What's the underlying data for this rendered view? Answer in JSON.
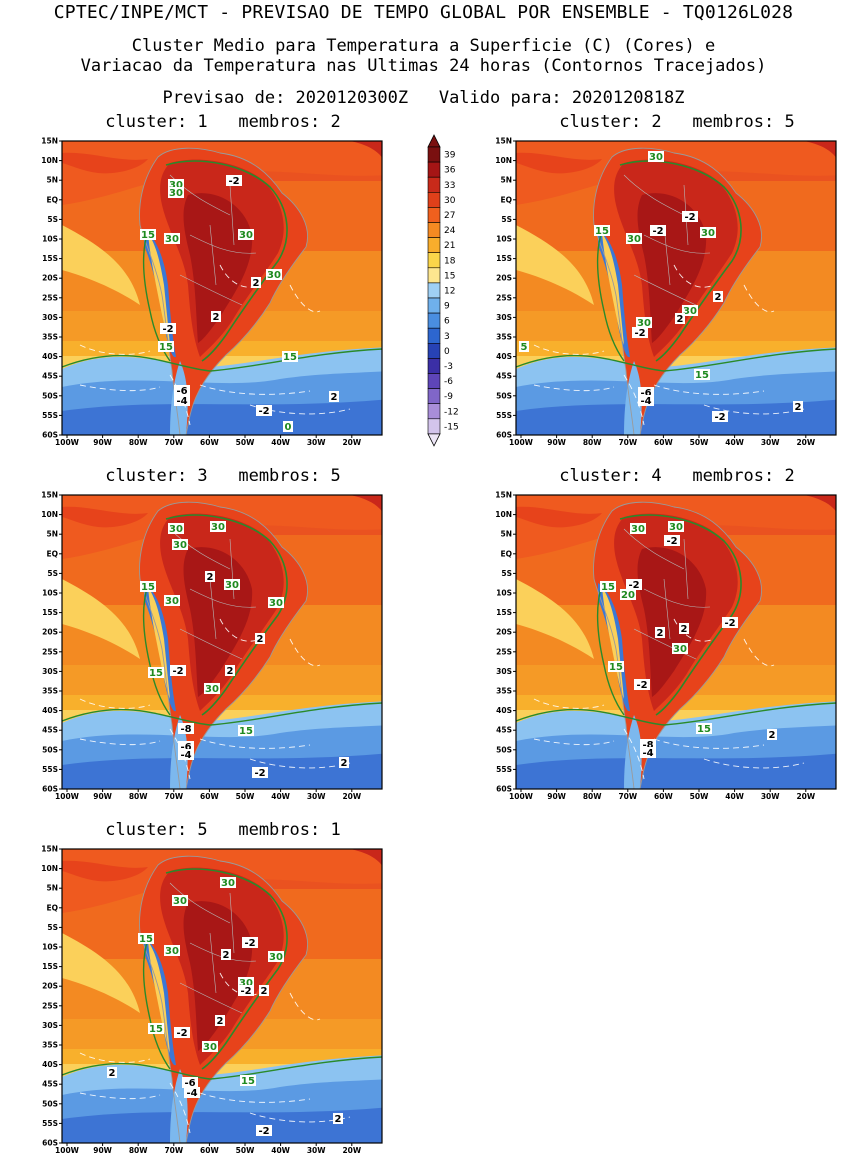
{
  "header": {
    "line1": "CPTEC/INPE/MCT - PREVISAO DE TEMPO GLOBAL POR ENSEMBLE - TQ0126L028",
    "line2": "Cluster Medio para Temperatura a Superficie (C) (Cores) e",
    "line3": "Variacao da Temperatura nas Ultimas 24 horas (Contornos Tracejados)",
    "line4": "Previsao de: 2020120300Z   Valido para: 2020120818Z"
  },
  "axes": {
    "lat_labels": [
      "15N",
      "10N",
      "5N",
      "EQ",
      "5S",
      "10S",
      "15S",
      "20S",
      "25S",
      "30S",
      "35S",
      "40S",
      "45S",
      "50S",
      "55S",
      "60S"
    ],
    "lon_labels": [
      "100W",
      "90W",
      "80W",
      "70W",
      "60W",
      "50W",
      "40W",
      "30W",
      "20W"
    ]
  },
  "colorbar": {
    "labels": [
      "39",
      "36",
      "33",
      "30",
      "27",
      "24",
      "21",
      "18",
      "15",
      "12",
      "9",
      "6",
      "3",
      "0",
      "-3",
      "-6",
      "-9",
      "-12",
      "-15"
    ],
    "colors": [
      "#7a1010",
      "#a51515",
      "#c82a1a",
      "#e0401a",
      "#f0601e",
      "#f58a22",
      "#f8ad2c",
      "#fbd64a",
      "#fde68f",
      "#9fd0f5",
      "#6fb0ec",
      "#4a8ee0",
      "#2d66cf",
      "#2742b5",
      "#3b2fa6",
      "#5e45b8",
      "#8066c8",
      "#a98ed9",
      "#d3c4ec"
    ]
  },
  "colors": {
    "land_line": "#aaaaaa",
    "contour15_30": "#2a8a2a",
    "label_green": "#1f8a1f"
  },
  "panels": [
    {
      "title": "cluster: 1   membros: 2",
      "labels": [
        {
          "t": "-2",
          "c": "k"
        },
        {
          "t": "30",
          "c": "g"
        },
        {
          "t": "30",
          "c": "g"
        },
        {
          "t": "15",
          "c": "g"
        },
        {
          "t": "30",
          "c": "g"
        },
        {
          "t": "30",
          "c": "g"
        },
        {
          "t": "30",
          "c": "g"
        },
        {
          "t": "2",
          "c": "k"
        },
        {
          "t": "2",
          "c": "k"
        },
        {
          "t": "-2",
          "c": "k"
        },
        {
          "t": "15",
          "c": "g"
        },
        {
          "t": "15",
          "c": "g"
        },
        {
          "t": "-6",
          "c": "k"
        },
        {
          "t": "-4",
          "c": "k"
        },
        {
          "t": "-2",
          "c": "k"
        },
        {
          "t": "2",
          "c": "k"
        },
        {
          "t": "0",
          "c": "g"
        }
      ]
    },
    {
      "title": "cluster: 2   membros: 5",
      "labels": [
        {
          "t": "30",
          "c": "g"
        },
        {
          "t": "-2",
          "c": "k"
        },
        {
          "t": "-2",
          "c": "k"
        },
        {
          "t": "15",
          "c": "g"
        },
        {
          "t": "30",
          "c": "g"
        },
        {
          "t": "30",
          "c": "g"
        },
        {
          "t": "30",
          "c": "g"
        },
        {
          "t": "2",
          "c": "k"
        },
        {
          "t": "2",
          "c": "k"
        },
        {
          "t": "30",
          "c": "g"
        },
        {
          "t": "-2",
          "c": "k"
        },
        {
          "t": "5",
          "c": "g"
        },
        {
          "t": "15",
          "c": "g"
        },
        {
          "t": "-6",
          "c": "k"
        },
        {
          "t": "-4",
          "c": "k"
        },
        {
          "t": "-2",
          "c": "k"
        },
        {
          "t": "2",
          "c": "k"
        }
      ]
    },
    {
      "title": "cluster: 3   membros: 5",
      "labels": [
        {
          "t": "30",
          "c": "g"
        },
        {
          "t": "30",
          "c": "g"
        },
        {
          "t": "30",
          "c": "g"
        },
        {
          "t": "2",
          "c": "k"
        },
        {
          "t": "30",
          "c": "g"
        },
        {
          "t": "15",
          "c": "g"
        },
        {
          "t": "30",
          "c": "g"
        },
        {
          "t": "30",
          "c": "g"
        },
        {
          "t": "2",
          "c": "k"
        },
        {
          "t": "15",
          "c": "g"
        },
        {
          "t": "-2",
          "c": "k"
        },
        {
          "t": "2",
          "c": "k"
        },
        {
          "t": "30",
          "c": "g"
        },
        {
          "t": "15",
          "c": "g"
        },
        {
          "t": "-8",
          "c": "k"
        },
        {
          "t": "-6",
          "c": "k"
        },
        {
          "t": "-4",
          "c": "k"
        },
        {
          "t": "-2",
          "c": "k"
        },
        {
          "t": "2",
          "c": "k"
        }
      ]
    },
    {
      "title": "cluster: 4   membros: 2",
      "labels": [
        {
          "t": "30",
          "c": "g"
        },
        {
          "t": "30",
          "c": "g"
        },
        {
          "t": "-2",
          "c": "k"
        },
        {
          "t": "-2",
          "c": "k"
        },
        {
          "t": "20",
          "c": "g"
        },
        {
          "t": "15",
          "c": "g"
        },
        {
          "t": "-2",
          "c": "k"
        },
        {
          "t": "2",
          "c": "k"
        },
        {
          "t": "2",
          "c": "k"
        },
        {
          "t": "30",
          "c": "g"
        },
        {
          "t": "15",
          "c": "g"
        },
        {
          "t": "-2",
          "c": "k"
        },
        {
          "t": "15",
          "c": "g"
        },
        {
          "t": "2",
          "c": "k"
        },
        {
          "t": "-8",
          "c": "k"
        },
        {
          "t": "-4",
          "c": "k"
        }
      ]
    },
    {
      "title": "cluster: 5   membros: 1",
      "labels": [
        {
          "t": "30",
          "c": "g"
        },
        {
          "t": "30",
          "c": "g"
        },
        {
          "t": "15",
          "c": "g"
        },
        {
          "t": "30",
          "c": "g"
        },
        {
          "t": "-2",
          "c": "k"
        },
        {
          "t": "2",
          "c": "k"
        },
        {
          "t": "30",
          "c": "g"
        },
        {
          "t": "30",
          "c": "g"
        },
        {
          "t": "-2",
          "c": "k"
        },
        {
          "t": "2",
          "c": "k"
        },
        {
          "t": "2",
          "c": "k"
        },
        {
          "t": "15",
          "c": "g"
        },
        {
          "t": "-2",
          "c": "k"
        },
        {
          "t": "30",
          "c": "g"
        },
        {
          "t": "2",
          "c": "k"
        },
        {
          "t": "-6",
          "c": "k"
        },
        {
          "t": "-4",
          "c": "k"
        },
        {
          "t": "15",
          "c": "g"
        },
        {
          "t": "2",
          "c": "k"
        },
        {
          "t": "-2",
          "c": "k"
        }
      ]
    }
  ]
}
